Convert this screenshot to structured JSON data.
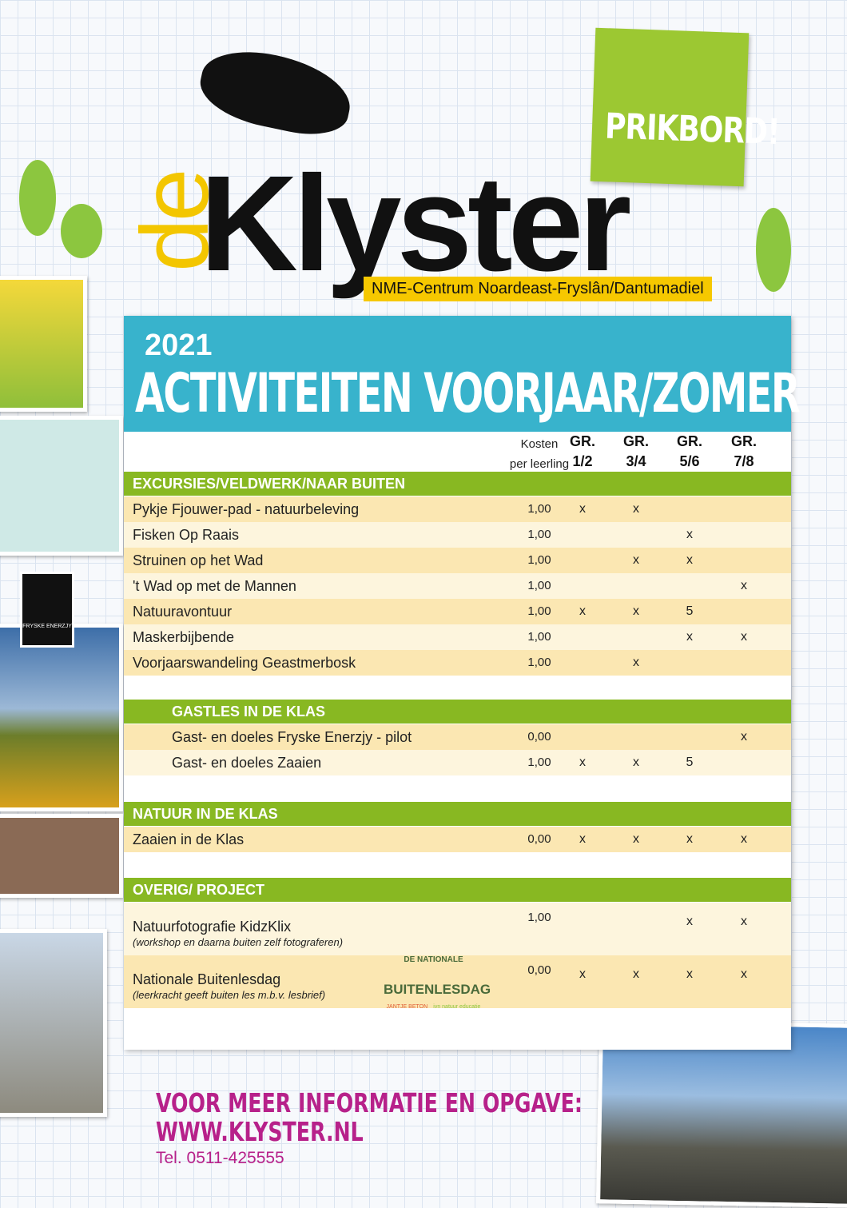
{
  "logo": {
    "prefix": "de",
    "name": "Klyster",
    "subtitle": "NME-Centrum Noardeast-Fryslân/Dantumadiel"
  },
  "prikbord": "PRIKBORD!",
  "banner": {
    "year": "2021",
    "title": "ACTIVITEITEN VOORJAAR/ZOMER"
  },
  "table": {
    "cost_header": [
      "Kosten",
      "per leerling"
    ],
    "group_headers": [
      [
        "GR.",
        "1/2"
      ],
      [
        "GR.",
        "3/4"
      ],
      [
        "GR.",
        "5/6"
      ],
      [
        "GR.",
        "7/8"
      ]
    ],
    "sections": [
      {
        "title": "EXCURSIES/VELDWERK/NAAR BUITEN",
        "rows": [
          {
            "name": "Pykje Fjouwer-pad - natuurbeleving",
            "cost": "1,00",
            "groups": [
              "x",
              "x",
              "",
              ""
            ]
          },
          {
            "name": "Fisken Op Raais",
            "cost": "1,00",
            "groups": [
              "",
              "",
              "x",
              ""
            ]
          },
          {
            "name": "Struinen op het Wad",
            "cost": "1,00",
            "groups": [
              "",
              "x",
              "x",
              ""
            ]
          },
          {
            "name": "'t Wad op met de Mannen",
            "cost": "1,00",
            "groups": [
              "",
              "",
              "",
              "x"
            ]
          },
          {
            "name": "Natuuravontuur",
            "cost": "1,00",
            "groups": [
              "x",
              "x",
              "5",
              ""
            ]
          },
          {
            "name": "Maskerbijbende",
            "cost": "1,00",
            "groups": [
              "",
              "",
              "x",
              "x"
            ]
          },
          {
            "name": "Voorjaarswandeling Geastmerbosk",
            "cost": "1,00",
            "groups": [
              "",
              "x",
              "",
              ""
            ]
          }
        ]
      },
      {
        "title": "GASTLES IN DE KLAS",
        "rows": [
          {
            "name": "Gast- en doeles Fryske Enerzjy - pilot",
            "cost": "0,00",
            "groups": [
              "",
              "",
              "",
              "x"
            ]
          },
          {
            "name": "Gast- en doeles Zaaien",
            "cost": "1,00",
            "groups": [
              "x",
              "x",
              "5",
              ""
            ]
          }
        ]
      },
      {
        "title": "NATUUR IN DE KLAS",
        "rows": [
          {
            "name": "Zaaien in de Klas",
            "cost": "0,00",
            "groups": [
              "x",
              "x",
              "x",
              "x"
            ]
          }
        ]
      },
      {
        "title": "OVERIG/ PROJECT",
        "rows": [
          {
            "name": "Natuurfotografie KidzKlix",
            "sub": "(workshop en daarna buiten zelf fotograferen)",
            "cost": "1,00",
            "groups": [
              "",
              "",
              "x",
              "x"
            ]
          },
          {
            "name": "Nationale Buitenlesdag",
            "sub": "(leerkracht geeft buiten les m.b.v. lesbrief)",
            "cost": "0,00",
            "groups": [
              "x",
              "x",
              "x",
              "x"
            ]
          }
        ]
      }
    ]
  },
  "buitenlesdag_logo": {
    "top": "DE NATIONALE",
    "main": "BUITENLESDAG",
    "partners": [
      "JANTJE BETON",
      "ivn natuur educatie"
    ]
  },
  "fryske_logo": "FRYSKE ENERZJY",
  "contact": {
    "line1": "VOOR MEER INFORMATIE EN OPGAVE:",
    "line2": "WWW.KLYSTER.NL",
    "tel": "Tel. 0511-425555"
  },
  "colors": {
    "banner": "#38b3cc",
    "section": "#88b822",
    "logo_yellow": "#f6c800",
    "contact": "#b7218a",
    "prikbord": "#9cc832"
  }
}
